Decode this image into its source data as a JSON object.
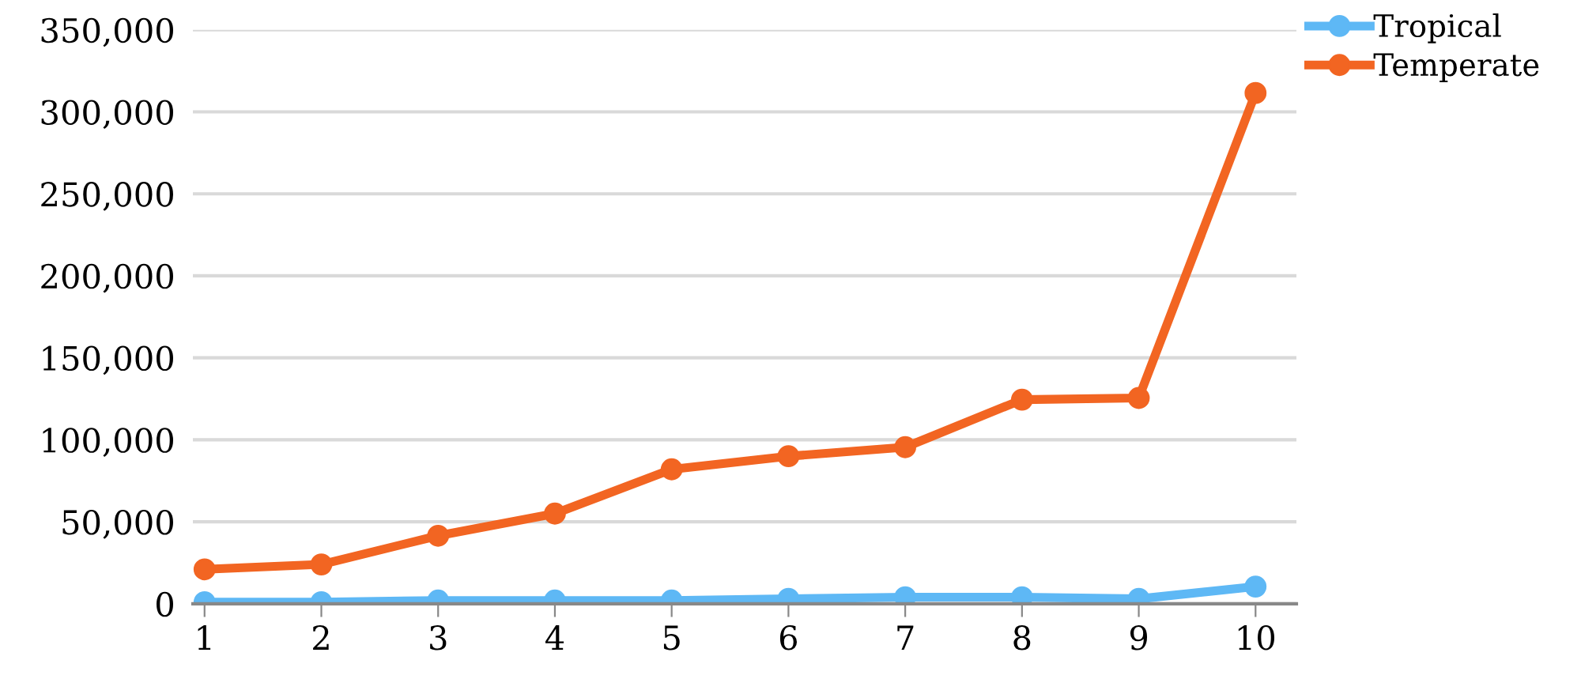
{
  "chart_data": {
    "type": "line",
    "categories": [
      "1",
      "2",
      "3",
      "4",
      "5",
      "6",
      "7",
      "8",
      "9",
      "10"
    ],
    "series": [
      {
        "name": "Tropical",
        "color": "#5eb8f5",
        "values": [
          1000,
          1000,
          2000,
          2000,
          2000,
          3000,
          4000,
          4000,
          3000,
          10500
        ]
      },
      {
        "name": "Temperate",
        "color": "#f26522",
        "values": [
          21000,
          24000,
          41500,
          55000,
          82000,
          90000,
          95500,
          124500,
          125500,
          311500
        ]
      }
    ],
    "ylim": [
      0,
      350000
    ],
    "yticks": [
      {
        "value": 0,
        "label": "0"
      },
      {
        "value": 50000,
        "label": "50,000"
      },
      {
        "value": 100000,
        "label": "100,000"
      },
      {
        "value": 150000,
        "label": "150,000"
      },
      {
        "value": 200000,
        "label": "200,000"
      },
      {
        "value": 250000,
        "label": "250,000"
      },
      {
        "value": 300000,
        "label": "300,000"
      },
      {
        "value": 350000,
        "label": "350,000"
      }
    ],
    "grid": "y",
    "legend": "top right",
    "marker": "circle",
    "line_style": "solid"
  }
}
